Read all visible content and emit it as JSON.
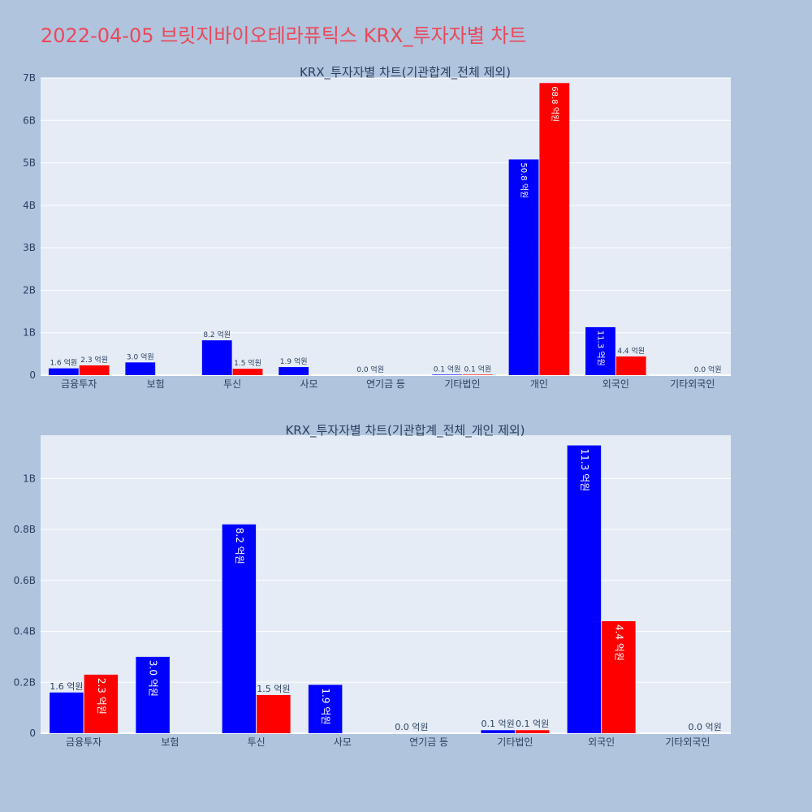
{
  "page_title": "2022-04-05 브릿지바이오테라퓨틱스 KRX_투자자별 차트",
  "colors": {
    "background": "#b0c4de",
    "plot_bg": "#e5ecf6",
    "title": "#ea4859",
    "buy": "#0000ff",
    "sell": "#ff0000"
  },
  "chart_data": [
    {
      "type": "bar",
      "title": "KRX_투자자별 차트(기관합계_전체 제외)",
      "categories": [
        "금융투자",
        "보험",
        "투신",
        "사모",
        "연기금 등",
        "기타법인",
        "개인",
        "외국인",
        "기타외국인"
      ],
      "series": [
        {
          "color": "#0000ff",
          "values": [
            0.16,
            0.3,
            0.82,
            0.19,
            0.0,
            0.012,
            5.08,
            1.13,
            0.0
          ],
          "labels": [
            "1.6 억원",
            "3.0 억원",
            "8.2 억원",
            "1.9 억원",
            "0.0 억원",
            "0.1 억원",
            "50.8 억원",
            "11.3 억원",
            ""
          ]
        },
        {
          "color": "#ff0000",
          "values": [
            0.23,
            0.0,
            0.15,
            0.0,
            0.0,
            0.012,
            6.88,
            0.44,
            0.0
          ],
          "labels": [
            "2.3 억원",
            "",
            "1.5 억원",
            "",
            "",
            "0.1 억원",
            "68.8 억원",
            "4.4 억원",
            "0.0 억원"
          ]
        }
      ],
      "y_unit": "B",
      "ylim": [
        0,
        7.0
      ],
      "yticks": [
        0,
        1,
        2,
        3,
        4,
        5,
        6,
        7
      ],
      "ytick_labels": [
        "0",
        "1B",
        "2B",
        "3B",
        "4B",
        "5B",
        "6B",
        "7B"
      ],
      "xlabel": "",
      "ylabel": "",
      "grid": true
    },
    {
      "type": "bar",
      "title": "KRX_투자자별 차트(기관합계_전체_개인 제외)",
      "categories": [
        "금융투자",
        "보험",
        "투신",
        "사모",
        "연기금 등",
        "기타법인",
        "외국인",
        "기타외국인"
      ],
      "series": [
        {
          "color": "#0000ff",
          "values": [
            0.16,
            0.3,
            0.82,
            0.19,
            0.0,
            0.012,
            1.13,
            0.0
          ],
          "labels": [
            "1.6 억원",
            "3.0 억원",
            "8.2 억원",
            "1.9 억원",
            "0.0 억원",
            "0.1 억원",
            "11.3 억원",
            ""
          ]
        },
        {
          "color": "#ff0000",
          "values": [
            0.23,
            0.0,
            0.15,
            0.0,
            0.0,
            0.012,
            0.44,
            0.0
          ],
          "labels": [
            "2.3 억원",
            "",
            "1.5 억원",
            "",
            "",
            "0.1 억원",
            "4.4 억원",
            "0.0 억원"
          ]
        }
      ],
      "y_unit": "B",
      "ylim": [
        0,
        1.17
      ],
      "yticks": [
        0,
        0.2,
        0.4,
        0.6,
        0.8,
        1.0
      ],
      "ytick_labels": [
        "0",
        "0.2B",
        "0.4B",
        "0.6B",
        "0.8B",
        "1B"
      ],
      "xlabel": "",
      "ylabel": "",
      "grid": true
    }
  ]
}
